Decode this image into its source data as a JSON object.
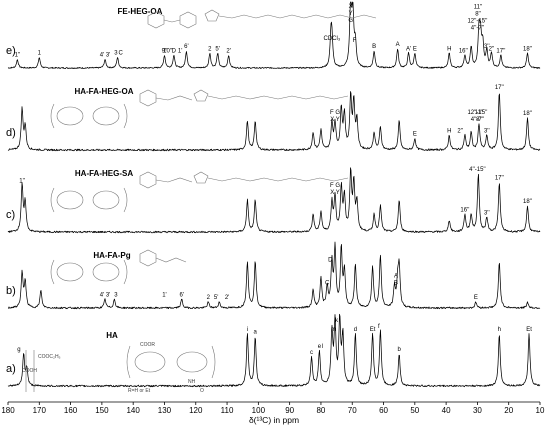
{
  "chart_data": {
    "type": "line",
    "xlabel": "δ(¹³C) in ppm",
    "xlim": [
      180,
      10
    ],
    "x_reversed": true,
    "x_ticks": [
      180,
      170,
      160,
      150,
      140,
      130,
      120,
      110,
      100,
      90,
      80,
      70,
      60,
      50,
      40,
      30,
      20,
      10
    ],
    "grid": false,
    "series": [
      {
        "name": "FE-HEG-OA",
        "panel": "e)",
        "peaks": [
          {
            "x": 177,
            "h": 0.2
          },
          {
            "x": 170,
            "h": 0.25
          },
          {
            "x": 149,
            "h": 0.2
          },
          {
            "x": 145,
            "h": 0.25
          },
          {
            "x": 130,
            "h": 0.3
          },
          {
            "x": 127,
            "h": 0.3
          },
          {
            "x": 123,
            "h": 0.4
          },
          {
            "x": 115.5,
            "h": 0.35
          },
          {
            "x": 113,
            "h": 0.35
          },
          {
            "x": 109.5,
            "h": 0.3
          },
          {
            "x": 76.8,
            "h": 0.7
          },
          {
            "x": 76.5,
            "h": 0.6
          },
          {
            "x": 70.5,
            "h": 1.6
          },
          {
            "x": 69.8,
            "h": 1.2
          },
          {
            "x": 69,
            "h": 0.55
          },
          {
            "x": 63,
            "h": 0.4
          },
          {
            "x": 55.5,
            "h": 0.45
          },
          {
            "x": 52,
            "h": 0.35
          },
          {
            "x": 50,
            "h": 0.35
          },
          {
            "x": 39,
            "h": 0.35
          },
          {
            "x": 34,
            "h": 0.3
          },
          {
            "x": 32,
            "h": 0.5
          },
          {
            "x": 29.5,
            "h": 0.85
          },
          {
            "x": 29,
            "h": 0.7
          },
          {
            "x": 28.3,
            "h": 0.55
          },
          {
            "x": 27,
            "h": 0.4
          },
          {
            "x": 25.5,
            "h": 0.35
          },
          {
            "x": 22.5,
            "h": 0.3
          },
          {
            "x": 14,
            "h": 0.35
          }
        ],
        "labels": [
          {
            "x": 177,
            "text": "1''"
          },
          {
            "x": 170,
            "text": "1"
          },
          {
            "x": 149,
            "text": "4' 3'"
          },
          {
            "x": 145.5,
            "text": "3"
          },
          {
            "x": 144,
            "text": "C"
          },
          {
            "x": 130,
            "text": "9''"
          },
          {
            "x": 129,
            "text": "10''"
          },
          {
            "x": 127,
            "text": "D"
          },
          {
            "x": 125,
            "text": "1'"
          },
          {
            "x": 123,
            "text": "6'"
          },
          {
            "x": 115.5,
            "text": "2"
          },
          {
            "x": 113,
            "text": "5'"
          },
          {
            "x": 109.5,
            "text": "2'"
          },
          {
            "x": 76.5,
            "text": "CDCl₃"
          },
          {
            "x": 70.5,
            "text": "X"
          },
          {
            "x": 70.5,
            "text": "Y"
          },
          {
            "x": 70.5,
            "text": "G"
          },
          {
            "x": 69.3,
            "text": "F"
          },
          {
            "x": 63,
            "text": "B"
          },
          {
            "x": 55.5,
            "text": "A"
          },
          {
            "x": 52,
            "text": "A'"
          },
          {
            "x": 50,
            "text": "E"
          },
          {
            "x": 39,
            "text": "H"
          },
          {
            "x": 34.5,
            "text": "16''"
          },
          {
            "x": 30,
            "text": "4''-7''"
          },
          {
            "x": 30,
            "text": "12''-15''"
          },
          {
            "x": 29.8,
            "text": "8''"
          },
          {
            "x": 29.8,
            "text": "11''"
          },
          {
            "x": 27,
            "text": "3''"
          },
          {
            "x": 25.5,
            "text": "2''"
          },
          {
            "x": 22.5,
            "text": "17''"
          },
          {
            "x": 14,
            "text": "18''"
          }
        ]
      },
      {
        "name": "HA-FA-HEG-OA",
        "panel": "d)",
        "peaks": [
          {
            "x": 175.5,
            "h": 0.7
          },
          {
            "x": 174.5,
            "h": 0.4
          },
          {
            "x": 103.5,
            "h": 0.5
          },
          {
            "x": 101,
            "h": 0.5
          },
          {
            "x": 82.5,
            "h": 0.3
          },
          {
            "x": 80,
            "h": 0.35
          },
          {
            "x": 76.5,
            "h": 0.45
          },
          {
            "x": 75.5,
            "h": 0.45
          },
          {
            "x": 73.5,
            "h": 0.7
          },
          {
            "x": 72.5,
            "h": 0.6
          },
          {
            "x": 70.5,
            "h": 0.9
          },
          {
            "x": 69.5,
            "h": 0.8
          },
          {
            "x": 68.5,
            "h": 0.5
          },
          {
            "x": 63,
            "h": 0.3
          },
          {
            "x": 61,
            "h": 0.4
          },
          {
            "x": 55,
            "h": 0.5
          },
          {
            "x": 50,
            "h": 0.2
          },
          {
            "x": 39,
            "h": 0.25
          },
          {
            "x": 34,
            "h": 0.25
          },
          {
            "x": 32,
            "h": 0.3
          },
          {
            "x": 29.5,
            "h": 0.45
          },
          {
            "x": 27,
            "h": 0.25
          },
          {
            "x": 23,
            "h": 1.0
          },
          {
            "x": 14,
            "h": 0.55
          }
        ],
        "labels": [
          {
            "x": 75.5,
            "text": "X Y"
          },
          {
            "x": 75.5,
            "text": "F G"
          },
          {
            "x": 50,
            "text": "E"
          },
          {
            "x": 39,
            "text": "H"
          },
          {
            "x": 35.5,
            "text": "2''"
          },
          {
            "x": 30,
            "text": "4''-7''"
          },
          {
            "x": 30,
            "text": "12''-15''"
          },
          {
            "x": 29.5,
            "text": "8''"
          },
          {
            "x": 29.5,
            "text": "11''"
          },
          {
            "x": 27,
            "text": "3''"
          },
          {
            "x": 23,
            "text": "17''"
          },
          {
            "x": 14,
            "text": "18''"
          }
        ]
      },
      {
        "name": "HA-FA-HEG-SA",
        "panel": "c)",
        "peaks": [
          {
            "x": 175.5,
            "h": 0.8
          },
          {
            "x": 174.5,
            "h": 0.5
          },
          {
            "x": 103.5,
            "h": 0.55
          },
          {
            "x": 101,
            "h": 0.55
          },
          {
            "x": 82.5,
            "h": 0.3
          },
          {
            "x": 80,
            "h": 0.35
          },
          {
            "x": 76.5,
            "h": 0.5
          },
          {
            "x": 75.5,
            "h": 0.6
          },
          {
            "x": 73.5,
            "h": 0.75
          },
          {
            "x": 72.5,
            "h": 0.6
          },
          {
            "x": 70.5,
            "h": 1.0
          },
          {
            "x": 69.5,
            "h": 0.8
          },
          {
            "x": 68.5,
            "h": 0.5
          },
          {
            "x": 63,
            "h": 0.3
          },
          {
            "x": 61,
            "h": 0.45
          },
          {
            "x": 55,
            "h": 0.55
          },
          {
            "x": 39,
            "h": 0.2
          },
          {
            "x": 34,
            "h": 0.3
          },
          {
            "x": 32,
            "h": 0.3
          },
          {
            "x": 29.7,
            "h": 1.0
          },
          {
            "x": 27,
            "h": 0.25
          },
          {
            "x": 23,
            "h": 0.85
          },
          {
            "x": 14,
            "h": 0.45
          }
        ],
        "labels": [
          {
            "x": 175.5,
            "text": "1''"
          },
          {
            "x": 75.5,
            "text": "X Y"
          },
          {
            "x": 75.5,
            "text": "F G"
          },
          {
            "x": 30,
            "text": "4''-15''"
          },
          {
            "x": 34,
            "text": "16''"
          },
          {
            "x": 27,
            "text": "3''"
          },
          {
            "x": 23,
            "text": "17''"
          },
          {
            "x": 14,
            "text": "18''"
          }
        ]
      },
      {
        "name": "HA-FA-Pg",
        "panel": "b)",
        "peaks": [
          {
            "x": 175.5,
            "h": 0.6
          },
          {
            "x": 174.5,
            "h": 0.45
          },
          {
            "x": 169.5,
            "h": 0.3
          },
          {
            "x": 149,
            "h": 0.15
          },
          {
            "x": 146,
            "h": 0.15
          },
          {
            "x": 124.5,
            "h": 0.15
          },
          {
            "x": 116,
            "h": 0.1
          },
          {
            "x": 112.5,
            "h": 0.1
          },
          {
            "x": 103.5,
            "h": 0.8
          },
          {
            "x": 101,
            "h": 0.8
          },
          {
            "x": 82.5,
            "h": 0.3
          },
          {
            "x": 80,
            "h": 0.5
          },
          {
            "x": 78,
            "h": 0.35
          },
          {
            "x": 76.5,
            "h": 0.75
          },
          {
            "x": 75.5,
            "h": 1.0
          },
          {
            "x": 73.5,
            "h": 1.0
          },
          {
            "x": 72.5,
            "h": 0.6
          },
          {
            "x": 69,
            "h": 0.75
          },
          {
            "x": 63.5,
            "h": 0.7
          },
          {
            "x": 61,
            "h": 0.9
          },
          {
            "x": 56.5,
            "h": 0.35
          },
          {
            "x": 55.5,
            "h": 0.4
          },
          {
            "x": 55,
            "h": 0.7
          },
          {
            "x": 30.5,
            "h": 0.1
          },
          {
            "x": 23,
            "h": 0.8
          },
          {
            "x": 14,
            "h": 0.1
          }
        ],
        "labels": [
          {
            "x": 149,
            "text": "4' 3'"
          },
          {
            "x": 145.5,
            "text": "3"
          },
          {
            "x": 130,
            "text": "1'"
          },
          {
            "x": 124.5,
            "text": "6'"
          },
          {
            "x": 116,
            "text": "2"
          },
          {
            "x": 113.5,
            "text": "5'"
          },
          {
            "x": 110,
            "text": "2'"
          },
          {
            "x": 78,
            "text": "C"
          },
          {
            "x": 77,
            "text": "D"
          },
          {
            "x": 56,
            "text": "B"
          },
          {
            "x": 56,
            "text": "A"
          },
          {
            "x": 30.5,
            "text": "E"
          }
        ]
      },
      {
        "name": "HA",
        "panel": "a)",
        "peaks": [
          {
            "x": 175,
            "h": 0.55
          },
          {
            "x": 174,
            "h": 0.3
          },
          {
            "x": 103.5,
            "h": 0.9
          },
          {
            "x": 101,
            "h": 0.85
          },
          {
            "x": 83,
            "h": 0.5
          },
          {
            "x": 80.5,
            "h": 0.6
          },
          {
            "x": 76.5,
            "h": 0.9
          },
          {
            "x": 75.5,
            "h": 1.05
          },
          {
            "x": 74,
            "h": 1.1
          },
          {
            "x": 73,
            "h": 0.85
          },
          {
            "x": 69,
            "h": 0.9
          },
          {
            "x": 63.5,
            "h": 0.9
          },
          {
            "x": 61,
            "h": 0.95
          },
          {
            "x": 55,
            "h": 0.55
          },
          {
            "x": 23,
            "h": 0.9
          },
          {
            "x": 13.5,
            "h": 0.9
          }
        ],
        "labels": [
          {
            "x": 176.5,
            "text": "g"
          },
          {
            "x": 103.5,
            "text": "i"
          },
          {
            "x": 101,
            "text": "a"
          },
          {
            "x": 83,
            "text": "c"
          },
          {
            "x": 80.5,
            "text": "e"
          },
          {
            "x": 79.5,
            "text": "l"
          },
          {
            "x": 76,
            "text": "m"
          },
          {
            "x": 75,
            "text": "k"
          },
          {
            "x": 73,
            "text": "j"
          },
          {
            "x": 69,
            "text": "d"
          },
          {
            "x": 63.5,
            "text": "Et"
          },
          {
            "x": 61.5,
            "text": "f"
          },
          {
            "x": 55,
            "text": "b"
          },
          {
            "x": 23,
            "text": "h"
          },
          {
            "x": 13.5,
            "text": "Et"
          }
        ]
      }
    ]
  },
  "structures": {
    "ha": {
      "text_a": "COOC₂H₅",
      "text_b": "COOH",
      "text_c": "COOR",
      "text_d": "NH",
      "text_e": "O",
      "text_f": "R=H or Et"
    }
  }
}
